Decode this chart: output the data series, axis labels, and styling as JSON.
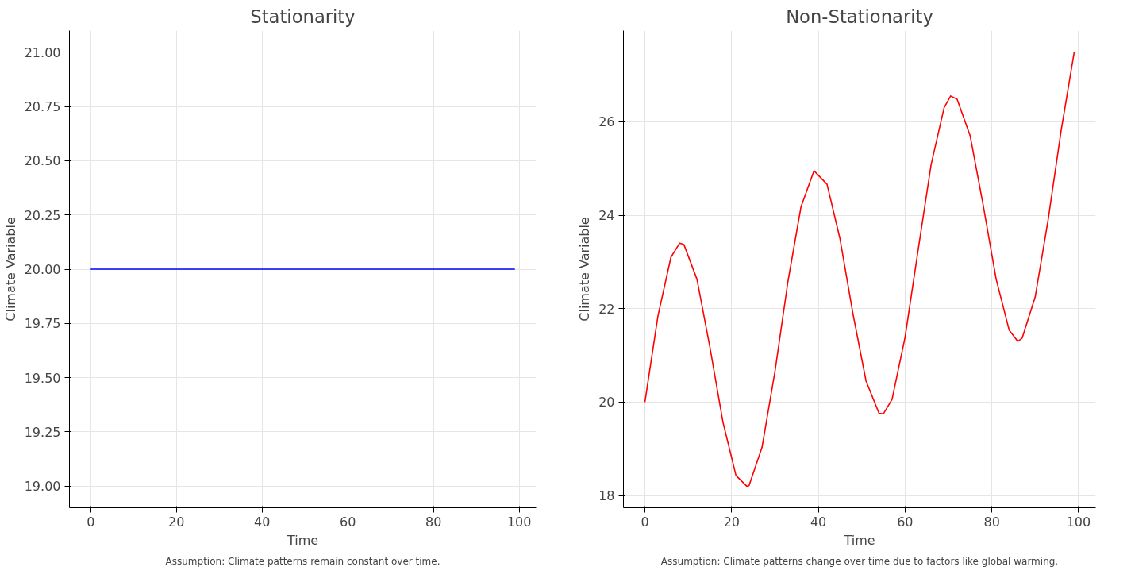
{
  "chart_data": [
    {
      "type": "line",
      "title": "Stationarity",
      "xlabel": "Time",
      "ylabel": "Climate Variable",
      "annotations": [
        "Assumption: Climate patterns remain constant over time."
      ],
      "x": [
        0,
        99
      ],
      "series": [
        {
          "color": "#0000ff",
          "values": [
            20,
            20
          ]
        }
      ],
      "xlim": [
        -4.95,
        103.95
      ],
      "xticks": [
        0,
        20,
        40,
        60,
        80,
        100
      ],
      "ylim": [
        18.9,
        21.1
      ],
      "yticks": [
        {
          "value": 19,
          "label": "19.00"
        },
        {
          "value": 19.25,
          "label": "19.25"
        },
        {
          "value": 19.5,
          "label": "19.50"
        },
        {
          "value": 19.75,
          "label": "19.75"
        },
        {
          "value": 20,
          "label": "20.00"
        },
        {
          "value": 20.25,
          "label": "20.25"
        },
        {
          "value": 20.5,
          "label": "20.50"
        },
        {
          "value": 20.75,
          "label": "20.75"
        },
        {
          "value": 21,
          "label": "21.00"
        }
      ],
      "grid": true,
      "marker": "none",
      "line_style": "solid"
    },
    {
      "type": "line",
      "title": "Non-Stationarity",
      "xlabel": "Time",
      "ylabel": "Climate Variable",
      "annotations": [
        "Assumption: Climate patterns change over time due to factors like global warming."
      ],
      "x": [
        0,
        3,
        6,
        8,
        9,
        12,
        15,
        18,
        21,
        23.5,
        24,
        27,
        30,
        33,
        36,
        39,
        42,
        45,
        48,
        51,
        54,
        55,
        57,
        60,
        63,
        66,
        69,
        70.5,
        72,
        75,
        78,
        81,
        84,
        86,
        87,
        90,
        93,
        96,
        99
      ],
      "series": [
        {
          "color": "#ff0000",
          "values": [
            20.0,
            21.84,
            23.1,
            23.4,
            23.37,
            22.63,
            21.17,
            19.57,
            18.43,
            18.2,
            18.21,
            19.03,
            20.66,
            22.59,
            24.18,
            24.95,
            24.66,
            23.49,
            21.88,
            20.45,
            19.76,
            19.75,
            20.06,
            21.39,
            23.25,
            25.08,
            26.3,
            26.55,
            26.48,
            25.7,
            24.22,
            22.63,
            21.54,
            21.3,
            21.37,
            22.25,
            23.91,
            25.82,
            27.49
          ]
        }
      ],
      "xlim": [
        -4.95,
        103.95
      ],
      "xticks": [
        0,
        20,
        40,
        60,
        80,
        100
      ],
      "ylim": [
        17.74,
        27.95
      ],
      "yticks": [
        18,
        20,
        22,
        24,
        26
      ],
      "grid": true,
      "marker": "none",
      "line_style": "solid"
    }
  ]
}
